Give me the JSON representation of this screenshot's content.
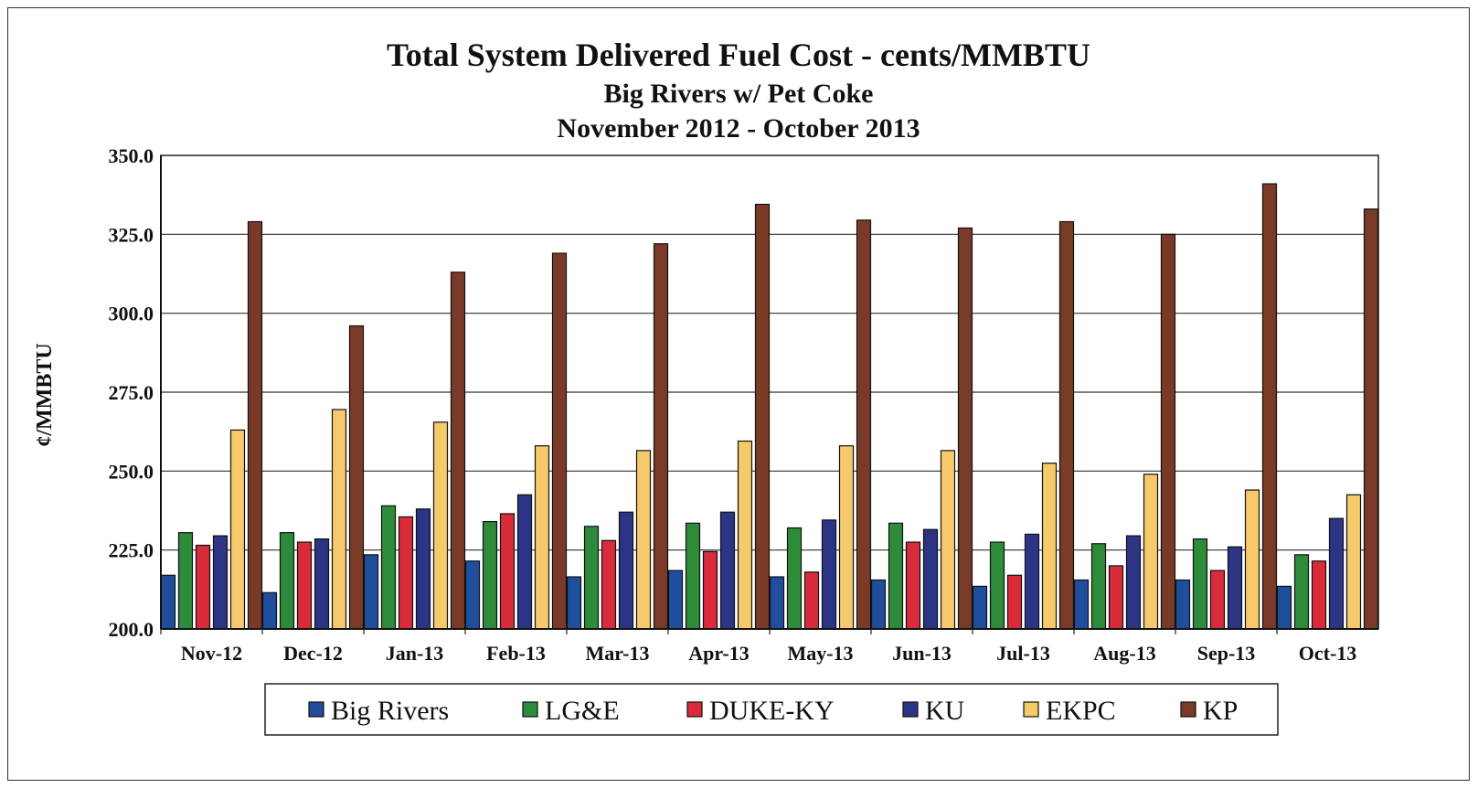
{
  "chart_data": {
    "type": "bar",
    "title": "Total System Delivered Fuel Cost - cents/MMBTU",
    "subtitle": "Big Rivers w/ Pet Coke",
    "subtitle2": "November 2012 - October 2013",
    "xlabel": "",
    "ylabel": "¢/MMBTU",
    "ylim": [
      200,
      350
    ],
    "yticks": [
      "350.0",
      "325.0",
      "300.0",
      "275.0",
      "250.0",
      "225.0",
      "200.0"
    ],
    "grid": true,
    "legend_position": "bottom",
    "categories": [
      "Nov-12",
      "Dec-12",
      "Jan-13",
      "Feb-13",
      "Mar-13",
      "Apr-13",
      "May-13",
      "Jun-13",
      "Jul-13",
      "Aug-13",
      "Sep-13",
      "Oct-13"
    ],
    "series": [
      {
        "name": "Big Rivers",
        "color": "#1f4e9c",
        "values": [
          217.0,
          211.5,
          223.5,
          221.5,
          216.5,
          218.5,
          216.5,
          215.5,
          213.5,
          215.5,
          215.5,
          213.5
        ]
      },
      {
        "name": "LG&E",
        "color": "#2e8b3a",
        "values": [
          230.5,
          230.5,
          239.0,
          234.0,
          232.5,
          233.5,
          232.0,
          233.5,
          227.5,
          227.0,
          228.5,
          223.5
        ]
      },
      {
        "name": "DUKE-KY",
        "color": "#d92b3a",
        "values": [
          226.5,
          227.5,
          235.5,
          236.5,
          228.0,
          224.5,
          218.0,
          227.5,
          217.0,
          220.0,
          218.5,
          221.5
        ]
      },
      {
        "name": "KU",
        "color": "#2c3585",
        "values": [
          229.5,
          228.5,
          238.0,
          242.5,
          237.0,
          237.0,
          234.5,
          231.5,
          230.0,
          229.5,
          226.0,
          235.0
        ]
      },
      {
        "name": "EKPC",
        "color": "#f6c96a",
        "values": [
          263.0,
          269.5,
          265.5,
          258.0,
          256.5,
          259.5,
          258.0,
          256.5,
          252.5,
          249.0,
          244.0,
          242.5
        ]
      },
      {
        "name": "KP",
        "color": "#7a3a28",
        "values": [
          329.0,
          296.0,
          313.0,
          319.0,
          322.0,
          334.5,
          329.5,
          327.0,
          329.0,
          325.0,
          341.0,
          333.0
        ]
      }
    ]
  }
}
